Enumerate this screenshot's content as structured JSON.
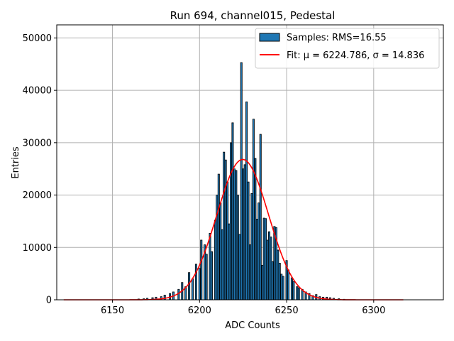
{
  "chart_data": {
    "type": "bar",
    "title": "Run 694, channel015, Pedestal",
    "xlabel": "ADC Counts",
    "ylabel": "Entries",
    "xlim": [
      6118,
      6340
    ],
    "ylim": [
      0,
      52500
    ],
    "xticks": [
      "6150",
      "6200",
      "6250",
      "6300"
    ],
    "yticks": [
      "0",
      "10000",
      "20000",
      "30000",
      "40000",
      "50000"
    ],
    "grid": true,
    "legend": {
      "placement": "top-right",
      "entries": [
        {
          "label": "Samples: RMS=16.55",
          "kind": "bar"
        },
        {
          "label": "Fit: μ = 6224.786, σ = 14.836",
          "kind": "line"
        }
      ]
    },
    "bar_fill": "#1f77b4",
    "bar_edge": "#000000",
    "fit_color": "#ff0000",
    "bins": {
      "x": [
        6165,
        6168,
        6170,
        6173,
        6175,
        6178,
        6180,
        6183,
        6185,
        6188,
        6190,
        6192,
        6194,
        6196,
        6198,
        6200,
        6201,
        6203,
        6204,
        6206,
        6207,
        6209,
        6210,
        6211,
        6212,
        6213,
        6214,
        6215,
        6216,
        6217,
        6218,
        6219,
        6220,
        6221,
        6222,
        6223,
        6224,
        6225,
        6226,
        6227,
        6228,
        6229,
        6230,
        6231,
        6232,
        6233,
        6234,
        6235,
        6236,
        6237,
        6238,
        6239,
        6240,
        6241,
        6242,
        6243,
        6244,
        6245,
        6246,
        6247,
        6248,
        6250,
        6251,
        6253,
        6254,
        6256,
        6257,
        6259,
        6261,
        6263,
        6265,
        6267,
        6269,
        6271,
        6273,
        6275,
        6277,
        6280,
        6283
      ],
      "counts": [
        150,
        200,
        300,
        400,
        500,
        600,
        900,
        1200,
        1500,
        2000,
        3300,
        2500,
        5200,
        4000,
        6800,
        6000,
        11400,
        10500,
        8700,
        12700,
        9200,
        15200,
        20000,
        24000,
        18500,
        13400,
        28200,
        26700,
        22500,
        14500,
        30000,
        33800,
        25000,
        24700,
        20000,
        12500,
        45300,
        25000,
        25800,
        37800,
        22500,
        10500,
        20300,
        34500,
        27000,
        15400,
        18500,
        31600,
        6600,
        15600,
        15500,
        11400,
        13000,
        12000,
        7300,
        14000,
        13800,
        9500,
        7000,
        4900,
        4500,
        7500,
        5700,
        4200,
        3500,
        2500,
        2300,
        2000,
        1500,
        1200,
        800,
        1000,
        600,
        500,
        500,
        400,
        300,
        200,
        100
      ]
    },
    "fit": {
      "mu": 6224.786,
      "sigma": 14.836,
      "amplitude": 26800,
      "x_range": [
        6122,
        6317
      ]
    }
  }
}
